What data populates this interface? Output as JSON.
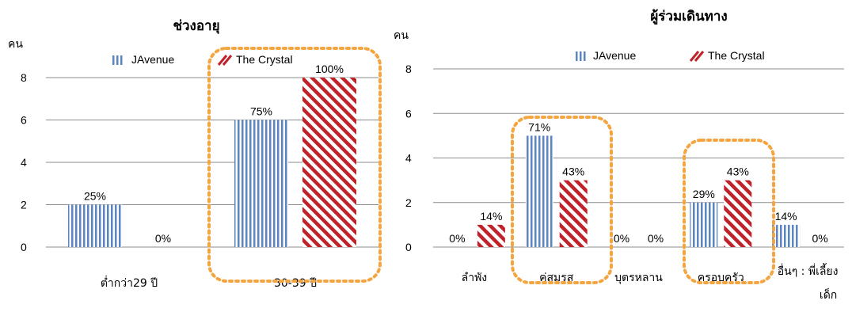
{
  "chart_data": [
    {
      "type": "bar",
      "title": "ช่วงอายุ",
      "ylabel": "คน",
      "ylim": [
        0,
        8
      ],
      "yticks": [
        0,
        2,
        4,
        6,
        8
      ],
      "grid": true,
      "legend_position": "top",
      "categories": [
        "ต่ำกว่า29 ปี",
        "30-39 ปี"
      ],
      "series": [
        {
          "name": "JAvenue",
          "color": "#5b85c3",
          "pattern": "vertical-stripes",
          "values": [
            2,
            6
          ],
          "labels": [
            "25%",
            "75%"
          ]
        },
        {
          "name": "The Crystal",
          "color": "#c0222a",
          "pattern": "diagonal-stripes",
          "values": [
            0,
            8
          ],
          "labels": [
            "0%",
            "100%"
          ]
        }
      ],
      "highlighted_categories": [
        "30-39 ปี"
      ]
    },
    {
      "type": "bar",
      "title": "ผู้ร่วมเดินทาง",
      "ylabel": "คน",
      "ylim": [
        0,
        8
      ],
      "yticks": [
        0,
        2,
        4,
        6,
        8
      ],
      "grid": true,
      "legend_position": "top",
      "categories": [
        "ลำพัง",
        "คู่สมรส",
        "บุตรหลาน",
        "ครอบครัว",
        "อื่นๆ : พี่เลี้ยงเด็ก"
      ],
      "series": [
        {
          "name": "JAvenue",
          "color": "#5b85c3",
          "pattern": "vertical-stripes",
          "values": [
            0,
            5,
            0,
            2,
            1
          ],
          "labels": [
            "0%",
            "71%",
            "0%",
            "29%",
            "14%"
          ]
        },
        {
          "name": "The Crystal",
          "color": "#c0222a",
          "pattern": "diagonal-stripes",
          "values": [
            1,
            3,
            0,
            3,
            0
          ],
          "labels": [
            "14%",
            "43%",
            "0%",
            "43%",
            "0%"
          ]
        }
      ],
      "highlighted_categories": [
        "คู่สมรส",
        "ครอบครัว"
      ]
    }
  ]
}
